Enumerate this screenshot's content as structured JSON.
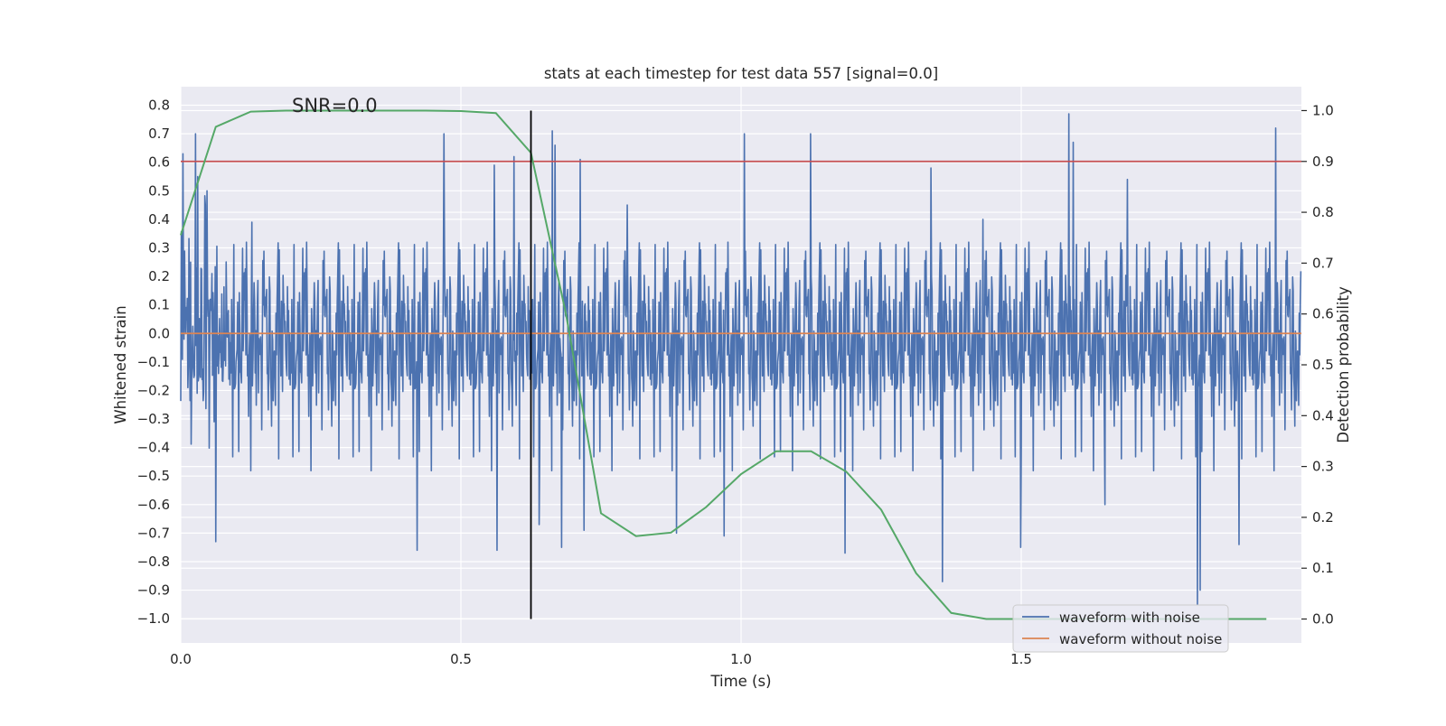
{
  "chart_data": {
    "type": "line",
    "title": "stats at each timestep for test data 557 [signal=0.0]",
    "xlabel": "Time (s)",
    "ylabel_left": "Whitened strain",
    "ylabel_right": "Detection probability",
    "annotation": "SNR=0.0",
    "xlim": [
      0.0,
      2.0
    ],
    "ylim_left": [
      -1.085,
      0.865
    ],
    "ylim_right": [
      -0.047,
      1.047
    ],
    "x_ticks": [
      0.0,
      0.5,
      1.0,
      1.5
    ],
    "x_tick_labels": [
      "0.0",
      "0.5",
      "1.0",
      "1.5"
    ],
    "y_left_ticks": [
      0.8,
      0.7,
      0.6,
      0.5,
      0.4,
      0.3,
      0.2,
      0.1,
      0.0,
      -0.1,
      -0.2,
      -0.3,
      -0.4,
      -0.5,
      -0.6,
      -0.7,
      -0.8,
      -0.9,
      -1.0
    ],
    "y_left_tick_labels": [
      "0.8",
      "0.7",
      "0.6",
      "0.5",
      "0.4",
      "0.3",
      "0.2",
      "0.1",
      "0.0",
      "−0.1",
      "−0.2",
      "−0.3",
      "−0.4",
      "−0.5",
      "−0.6",
      "−0.7",
      "−0.8",
      "−0.9",
      "−1.0"
    ],
    "y_right_ticks": [
      1.0,
      0.9,
      0.8,
      0.7,
      0.6,
      0.5,
      0.4,
      0.3,
      0.2,
      0.1,
      0.0
    ],
    "y_right_tick_labels": [
      "1.0",
      "0.9",
      "0.8",
      "0.7",
      "0.6",
      "0.5",
      "0.4",
      "0.3",
      "0.2",
      "0.1",
      "0.0"
    ],
    "threshold_line": {
      "y_prob": 0.9,
      "color": "#c44e52"
    },
    "vertical_marker": {
      "x": 0.625,
      "y_prob_range": [
        0.0,
        1.0
      ],
      "color": "#000000"
    },
    "series": [
      {
        "name": "waveform with noise",
        "color": "#4c72b0",
        "generated": true,
        "n_points": 2048,
        "std": 0.19,
        "peaks": [
          [
            0.004,
            0.63
          ],
          [
            0.018,
            0.25
          ],
          [
            0.026,
            0.7
          ],
          [
            0.03,
            0.55
          ],
          [
            0.044,
            0.45
          ],
          [
            0.047,
            0.5
          ],
          [
            0.127,
            0.39
          ],
          [
            0.47,
            0.7
          ],
          [
            0.56,
            0.59
          ],
          [
            0.595,
            0.62
          ],
          [
            0.663,
            0.71
          ],
          [
            0.668,
            0.66
          ],
          [
            0.713,
            0.61
          ],
          [
            0.797,
            0.45
          ],
          [
            1.006,
            0.7
          ],
          [
            1.125,
            0.7
          ],
          [
            1.34,
            0.58
          ],
          [
            1.432,
            0.4
          ],
          [
            1.586,
            0.77
          ],
          [
            1.594,
            0.67
          ],
          [
            1.69,
            0.54
          ],
          [
            1.955,
            0.72
          ],
          [
            0.063,
            -0.73
          ],
          [
            0.422,
            -0.76
          ],
          [
            0.565,
            -0.76
          ],
          [
            0.64,
            -0.67
          ],
          [
            0.885,
            -0.7
          ],
          [
            0.97,
            -0.71
          ],
          [
            1.186,
            -0.77
          ],
          [
            1.36,
            -0.87
          ],
          [
            1.5,
            -0.75
          ],
          [
            1.65,
            -0.6
          ],
          [
            1.815,
            -0.95
          ],
          [
            1.82,
            -0.9
          ],
          [
            1.89,
            -0.74
          ],
          [
            0.68,
            -0.75
          ],
          [
            0.72,
            -0.69
          ]
        ]
      },
      {
        "name": "waveform without noise",
        "color": "#dd8452",
        "x": [
          0.0,
          2.0
        ],
        "y": [
          0.0,
          0.0
        ]
      },
      {
        "name": "detection probability",
        "color": "#55a868",
        "axis": "right",
        "x": [
          0.0,
          0.0625,
          0.125,
          0.1875,
          0.25,
          0.3125,
          0.375,
          0.4375,
          0.5,
          0.5625,
          0.625,
          0.6875,
          0.75,
          0.8125,
          0.875,
          0.9375,
          1.0,
          1.0625,
          1.125,
          1.1875,
          1.25,
          1.3125,
          1.375,
          1.4375,
          1.5,
          1.5625,
          1.625,
          1.6875,
          1.75,
          1.8125,
          1.875,
          1.9375
        ],
        "y": [
          0.755,
          0.968,
          0.998,
          1.0,
          1.0,
          1.0,
          1.0,
          1.0,
          0.999,
          0.995,
          0.917,
          0.6,
          0.208,
          0.163,
          0.17,
          0.22,
          0.285,
          0.33,
          0.33,
          0.29,
          0.215,
          0.09,
          0.012,
          0.0,
          0.0,
          0.0,
          0.0,
          0.0,
          0.0,
          0.0,
          0.0,
          0.0
        ]
      }
    ],
    "legend": {
      "position": "lower-right",
      "entries": [
        {
          "label": "waveform with noise",
          "color": "#4c72b0"
        },
        {
          "label": "waveform without noise",
          "color": "#dd8452"
        }
      ]
    },
    "style": {
      "axes_facecolor": "#eaeaf2",
      "grid_color": "#ffffff",
      "grid": true
    }
  }
}
